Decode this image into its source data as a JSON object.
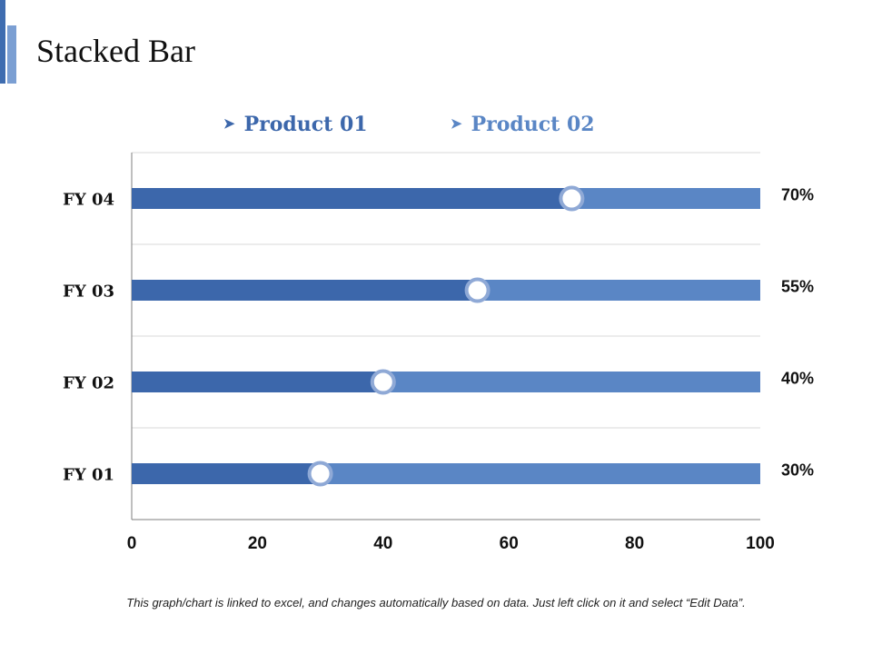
{
  "title": "Stacked Bar",
  "colors": {
    "product1": "#3c67ab",
    "product2": "#5a86c5",
    "marker_ring": "#8fa9d6",
    "grid": "#d9d9d9",
    "axis": "#7f7f7f",
    "accent_dark": "#3f6db0",
    "accent_light": "#7b9fd3"
  },
  "legend": [
    {
      "label": "Product 01",
      "color": "#3c67ab",
      "marker": "arrow-bullet-icon"
    },
    {
      "label": "Product 02",
      "color": "#5a86c5",
      "marker": "arrow-bullet-icon"
    }
  ],
  "chart_data": {
    "type": "bar",
    "orientation": "horizontal",
    "stacked": true,
    "categories": [
      "FY 01",
      "FY 02",
      "FY 03",
      "FY 04"
    ],
    "series": [
      {
        "name": "Product 01",
        "values": [
          30,
          40,
          55,
          70
        ]
      },
      {
        "name": "Product 02",
        "values": [
          70,
          60,
          45,
          30
        ]
      }
    ],
    "data_labels": [
      "30%",
      "40%",
      "55%",
      "70%"
    ],
    "xlim": [
      0,
      100
    ],
    "xticks": [
      "0",
      "20",
      "40",
      "60",
      "80",
      "100"
    ],
    "xlabel": "",
    "ylabel": "",
    "grid": true,
    "legend_position": "top"
  },
  "footnote": "This graph/chart is linked to excel, and changes automatically based on data.  Just left click on it and select “Edit Data”."
}
